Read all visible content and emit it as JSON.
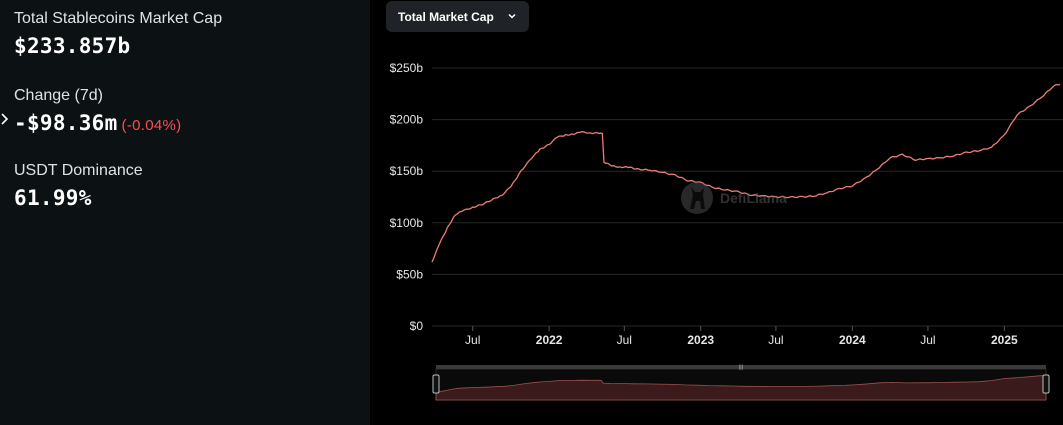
{
  "stats": {
    "market_cap_label": "Total Stablecoins Market Cap",
    "market_cap_value": "$233.857b",
    "change_label": "Change (7d)",
    "change_value": "-$98.36m",
    "change_percent": "(-0.04%)",
    "dominance_label": "USDT Dominance",
    "dominance_value": "61.99%"
  },
  "selector": {
    "label": "Total Market Cap",
    "icon": "chevron-down-icon"
  },
  "watermark": {
    "text": "DefiLlama",
    "icon": "llama-logo-icon"
  },
  "colors": {
    "left_panel_bg": "#0c1114",
    "chart_bg": "#000000",
    "line": "#ea7d76",
    "negative": "#ff4d4d",
    "brush_fill": "#3a1a1a"
  },
  "chart_data": {
    "type": "line",
    "title": "",
    "xlabel": "",
    "ylabel": "",
    "ylim": [
      0,
      250
    ],
    "y_unit": "b",
    "y_ticks": [
      {
        "value": 0,
        "label": "$0"
      },
      {
        "value": 50,
        "label": "$50b"
      },
      {
        "value": 100,
        "label": "$100b"
      },
      {
        "value": 150,
        "label": "$150b"
      },
      {
        "value": 200,
        "label": "$200b"
      },
      {
        "value": 250,
        "label": "$250b"
      }
    ],
    "x_ticks": [
      {
        "date": "2021-07",
        "label": "Jul",
        "year": false
      },
      {
        "date": "2022-01",
        "label": "2022",
        "year": true
      },
      {
        "date": "2022-07",
        "label": "Jul",
        "year": false
      },
      {
        "date": "2023-01",
        "label": "2023",
        "year": true
      },
      {
        "date": "2023-07",
        "label": "Jul",
        "year": false
      },
      {
        "date": "2024-01",
        "label": "2024",
        "year": true
      },
      {
        "date": "2024-07",
        "label": "Jul",
        "year": false
      },
      {
        "date": "2025-01",
        "label": "2025",
        "year": true
      }
    ],
    "xlim": [
      "2021-03-25",
      "2025-05-15"
    ],
    "grid": true,
    "legend": "none",
    "series": [
      {
        "x": [
          "2021-03-25",
          "2021-04-10",
          "2021-05-01",
          "2021-05-20",
          "2021-06-10",
          "2021-07-01",
          "2021-07-25",
          "2021-08-20",
          "2021-09-10",
          "2021-10-01",
          "2021-10-25",
          "2021-11-20",
          "2021-12-10",
          "2022-01-01",
          "2022-01-20",
          "2022-02-10",
          "2022-03-01",
          "2022-03-20",
          "2022-04-10",
          "2022-05-01",
          "2022-05-09",
          "2022-05-13",
          "2022-06-01",
          "2022-06-20",
          "2022-07-10",
          "2022-08-01",
          "2022-09-01",
          "2022-10-01",
          "2022-11-01",
          "2022-12-01",
          "2023-01-01",
          "2023-02-01",
          "2023-03-01",
          "2023-04-01",
          "2023-05-01",
          "2023-06-01",
          "2023-07-01",
          "2023-08-01",
          "2023-09-01",
          "2023-10-01",
          "2023-11-01",
          "2023-12-01",
          "2024-01-01",
          "2024-02-01",
          "2024-03-01",
          "2024-04-01",
          "2024-05-01",
          "2024-06-01",
          "2024-07-01",
          "2024-08-01",
          "2024-09-01",
          "2024-10-01",
          "2024-11-01",
          "2024-12-01",
          "2025-01-01",
          "2025-02-01",
          "2025-03-01",
          "2025-04-01",
          "2025-05-01",
          "2025-05-15"
        ],
        "values": [
          62,
          78,
          95,
          108,
          112,
          115,
          118,
          123,
          127,
          135,
          150,
          163,
          171,
          176,
          183,
          185,
          186,
          188,
          187,
          187,
          186,
          159,
          155,
          154,
          154,
          152,
          151,
          149,
          146,
          141,
          139,
          134,
          132,
          130,
          127,
          126,
          125,
          125,
          125,
          126,
          129,
          133,
          136,
          143,
          152,
          163,
          166,
          161,
          162,
          163,
          165,
          168,
          170,
          173,
          185,
          205,
          212,
          222,
          233,
          234
        ]
      }
    ]
  }
}
